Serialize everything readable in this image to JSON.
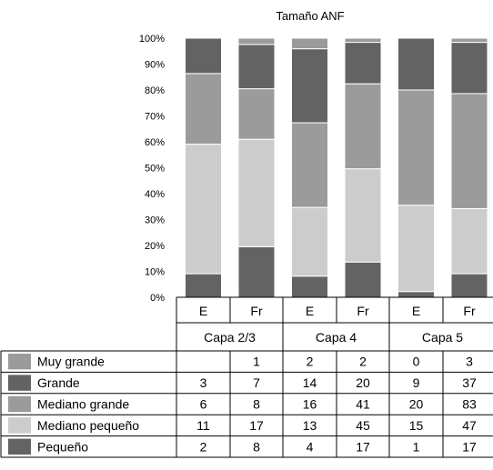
{
  "chart_data": {
    "type": "bar",
    "stacked": "percent",
    "title": "Tamaño ANF",
    "yticks": [
      "0%",
      "10%",
      "20%",
      "30%",
      "40%",
      "50%",
      "60%",
      "70%",
      "80%",
      "90%",
      "100%"
    ],
    "ylim": [
      0,
      100
    ],
    "grid": false,
    "legend": "table-below",
    "categories": [
      "E",
      "Fr",
      "E",
      "Fr",
      "E",
      "Fr"
    ],
    "groups": [
      "Capa 2/3",
      "Capa 4",
      "Capa 5"
    ],
    "series": [
      {
        "name": "Pequeño",
        "color": "#636363",
        "values": [
          2,
          8,
          4,
          17,
          1,
          17
        ],
        "labels": [
          "2",
          "8",
          "4",
          "17",
          "1",
          "17"
        ]
      },
      {
        "name": "Mediano pequeño",
        "color": "#cccccc",
        "values": [
          11,
          17,
          13,
          45,
          15,
          47
        ],
        "labels": [
          "11",
          "17",
          "13",
          "45",
          "15",
          "47"
        ]
      },
      {
        "name": "Mediano grande",
        "color": "#9b9b9b",
        "values": [
          6,
          8,
          16,
          41,
          20,
          83
        ],
        "labels": [
          "6",
          "8",
          "16",
          "41",
          "20",
          "83"
        ]
      },
      {
        "name": "Grande",
        "color": "#636363",
        "values": [
          3,
          7,
          14,
          20,
          9,
          37
        ],
        "labels": [
          "3",
          "7",
          "14",
          "20",
          "9",
          "37"
        ]
      },
      {
        "name": "Muy grande",
        "color": "#9b9b9b",
        "values": [
          0,
          1,
          2,
          2,
          0,
          3
        ],
        "labels": [
          "",
          "1",
          "2",
          "2",
          "0",
          "3"
        ]
      }
    ]
  }
}
